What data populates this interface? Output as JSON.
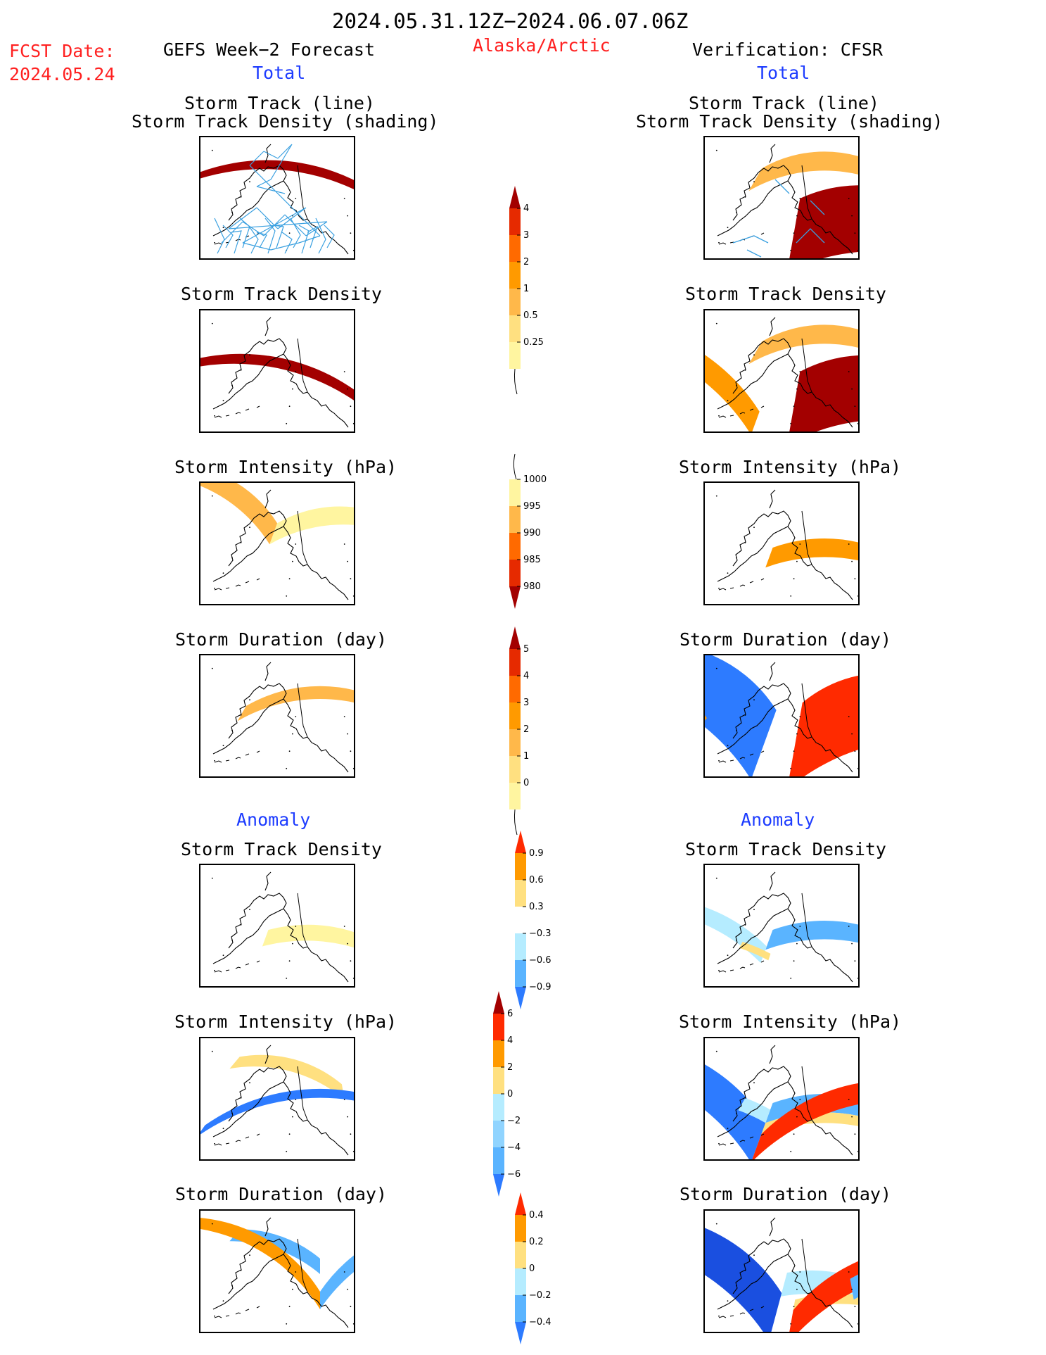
{
  "header": {
    "period": "2024.05.31.12Z−2024.06.07.06Z",
    "fcst_label": "FCST Date:",
    "fcst_date": "2024.05.24",
    "left_title": "GEFS Week−2 Forecast",
    "region": "Alaska/Arctic",
    "right_title": "Verification: CFSR",
    "total_left": "Total",
    "total_right": "Total",
    "anomaly_left": "Anomaly",
    "anomaly_right": "Anomaly"
  },
  "panel_titles": {
    "track_line": "Storm Track (line)",
    "track_density_shading": "Storm Track Density (shading)",
    "density": "Storm Track Density",
    "intensity": "Storm Intensity (hPa)",
    "duration": "Storm Duration (day)"
  },
  "colors": {
    "pale_yellow": "#fff5a0",
    "light_yellow": "#ffe080",
    "light_orange": "#ffb84a",
    "orange": "#ff9a00",
    "dark_orange": "#ff6a00",
    "red": "#e62a00",
    "dark_red": "#a30000",
    "light_blue": "#b5ecff",
    "mid_blue": "#5ab4ff",
    "blue": "#2d7bff",
    "dark_blue": "#1a4fe0",
    "track_line": "#3aa0e0"
  },
  "chart_data": [
    {
      "type": "heatmap",
      "title": "Storm Track Density",
      "colorbar": {
        "levels": [
          "4",
          "3",
          "2",
          "1",
          "0.5",
          "0.25"
        ],
        "colors": [
          "#a30000",
          "#e62a00",
          "#ff6a00",
          "#ff9a00",
          "#ffb84a",
          "#ffe080",
          "#fff5a0"
        ]
      }
    },
    {
      "type": "heatmap",
      "title": "Storm Intensity (hPa)",
      "colorbar": {
        "levels": [
          "1000",
          "995",
          "990",
          "985",
          "980"
        ],
        "colors": [
          "#fff5a0",
          "#ffb84a",
          "#ff6a00",
          "#e62a00",
          "#a30000"
        ]
      }
    },
    {
      "type": "heatmap",
      "title": "Storm Duration (day)",
      "colorbar": {
        "levels": [
          "5",
          "4",
          "3",
          "2",
          "1",
          "0"
        ],
        "colors": [
          "#a30000",
          "#e62a00",
          "#ff6a00",
          "#ff9a00",
          "#ffb84a",
          "#ffe080",
          "#fff5a0"
        ]
      }
    },
    {
      "type": "heatmap",
      "title": "Storm Track Density anomaly",
      "colorbar": {
        "levels": [
          "0.9",
          "0.6",
          "0.3",
          "−0.3",
          "−0.6",
          "−0.9"
        ],
        "colors": [
          "#ff2a00",
          "#ff9a00",
          "#ffe080",
          "#ffffff",
          "#b5ecff",
          "#5ab4ff",
          "#2d7bff"
        ]
      }
    },
    {
      "type": "heatmap",
      "title": "Storm Intensity anomaly (hPa)",
      "colorbar": {
        "levels": [
          "6",
          "4",
          "2",
          "0",
          "−2",
          "−4",
          "−6"
        ],
        "colors": [
          "#a30000",
          "#ff2a00",
          "#ff9a00",
          "#ffe080",
          "#b5ecff",
          "#90d4ff",
          "#5ab4ff",
          "#2d7bff"
        ]
      }
    },
    {
      "type": "heatmap",
      "title": "Storm Duration anomaly (day)",
      "colorbar": {
        "levels": [
          "0.4",
          "0.2",
          "0",
          "−0.2",
          "−0.4"
        ],
        "colors": [
          "#ff2a00",
          "#ff9a00",
          "#ffe080",
          "#b5ecff",
          "#5ab4ff",
          "#2d7bff"
        ]
      }
    }
  ]
}
